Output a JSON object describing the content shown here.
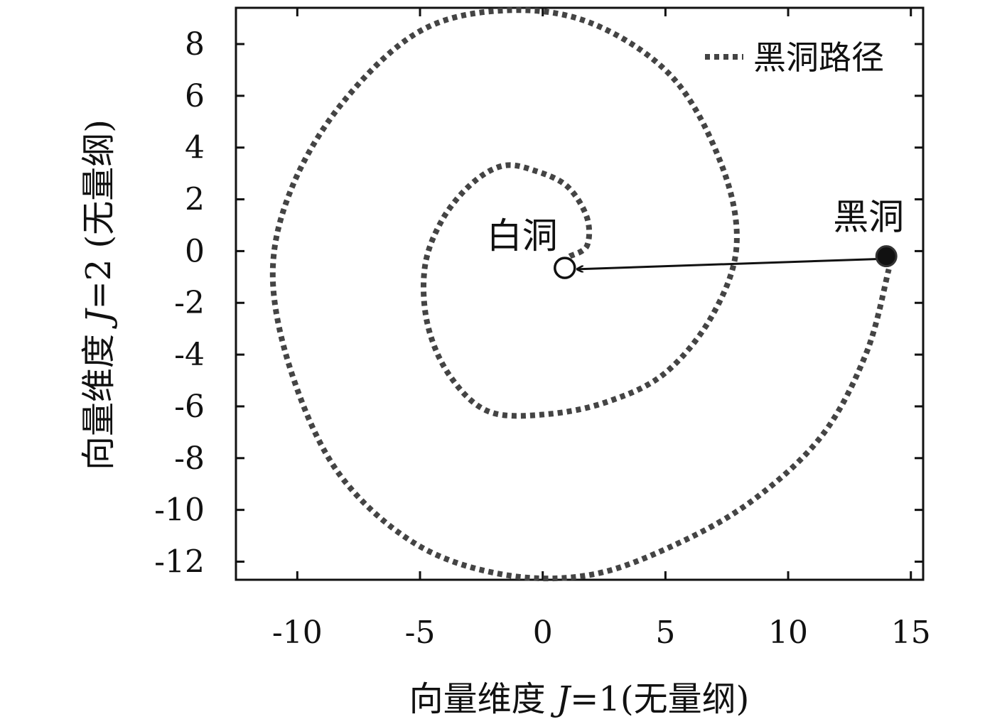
{
  "chart_data": {
    "type": "line",
    "title": "",
    "xlabel": "向量维度 J=1(无量纲)",
    "ylabel": "向量维度 J=2 (无量纲)",
    "xlim": [
      -12.5,
      15.5
    ],
    "ylim": [
      -12.7,
      9.4
    ],
    "x_ticks": [
      -10,
      -5,
      0,
      5,
      10,
      15
    ],
    "y_ticks": [
      -12,
      -10,
      -8,
      -6,
      -4,
      -2,
      0,
      2,
      4,
      6,
      8
    ],
    "grid": false,
    "legend_position": "top-right",
    "colors": {
      "path": "#444444",
      "axis": "#111111",
      "arrow": "#111111",
      "marker_fill": "#111111"
    },
    "series": [
      {
        "name": "黑洞路径",
        "style": "dotted",
        "x": [
          1.1,
          1.8,
          1.8,
          1.0,
          -0.3,
          -1.6,
          -2.9,
          -4.1,
          -4.8,
          -4.7,
          -3.8,
          -2.2,
          0.2,
          2.7,
          5.0,
          6.9,
          7.9,
          7.3,
          5.3,
          2.0,
          -1.5,
          -5.0,
          -8.1,
          -10.2,
          -11.0,
          -10.2,
          -8.3,
          -5.2,
          -1.6,
          2.0,
          5.5,
          8.6,
          11.4,
          13.2,
          14.1
        ],
        "y": [
          -0.2,
          0.2,
          1.3,
          2.5,
          3.1,
          3.3,
          2.6,
          1.2,
          -0.6,
          -2.8,
          -4.8,
          -6.2,
          -6.3,
          -5.8,
          -4.7,
          -2.5,
          0.2,
          3.3,
          6.7,
          8.8,
          9.3,
          8.5,
          5.8,
          2.5,
          -0.9,
          -4.8,
          -8.6,
          -11.3,
          -12.5,
          -12.5,
          -11.3,
          -9.6,
          -7.1,
          -3.9,
          -0.7
        ]
      }
    ],
    "points": [
      {
        "name": "黑洞",
        "x": 14.0,
        "y": -0.2,
        "marker": "filled-circle"
      },
      {
        "name": "白洞",
        "x": 0.9,
        "y": -0.65,
        "marker": "open-circle"
      }
    ],
    "annotations": [
      {
        "text": "黑洞",
        "at": "black-hole"
      },
      {
        "text": "白洞",
        "at": "white-hole"
      },
      {
        "type": "arrow",
        "from": [
          13.8,
          -0.3
        ],
        "to": [
          1.4,
          -0.7
        ]
      }
    ],
    "axis_texts": {
      "xlabel_main": "向量维度 ",
      "xlabel_var": "J",
      "xlabel_rest": "=1(无量纲)",
      "ylabel_main": "向量维度 ",
      "ylabel_var": "J",
      "ylabel_rest": "=2 (无量纲)"
    }
  }
}
